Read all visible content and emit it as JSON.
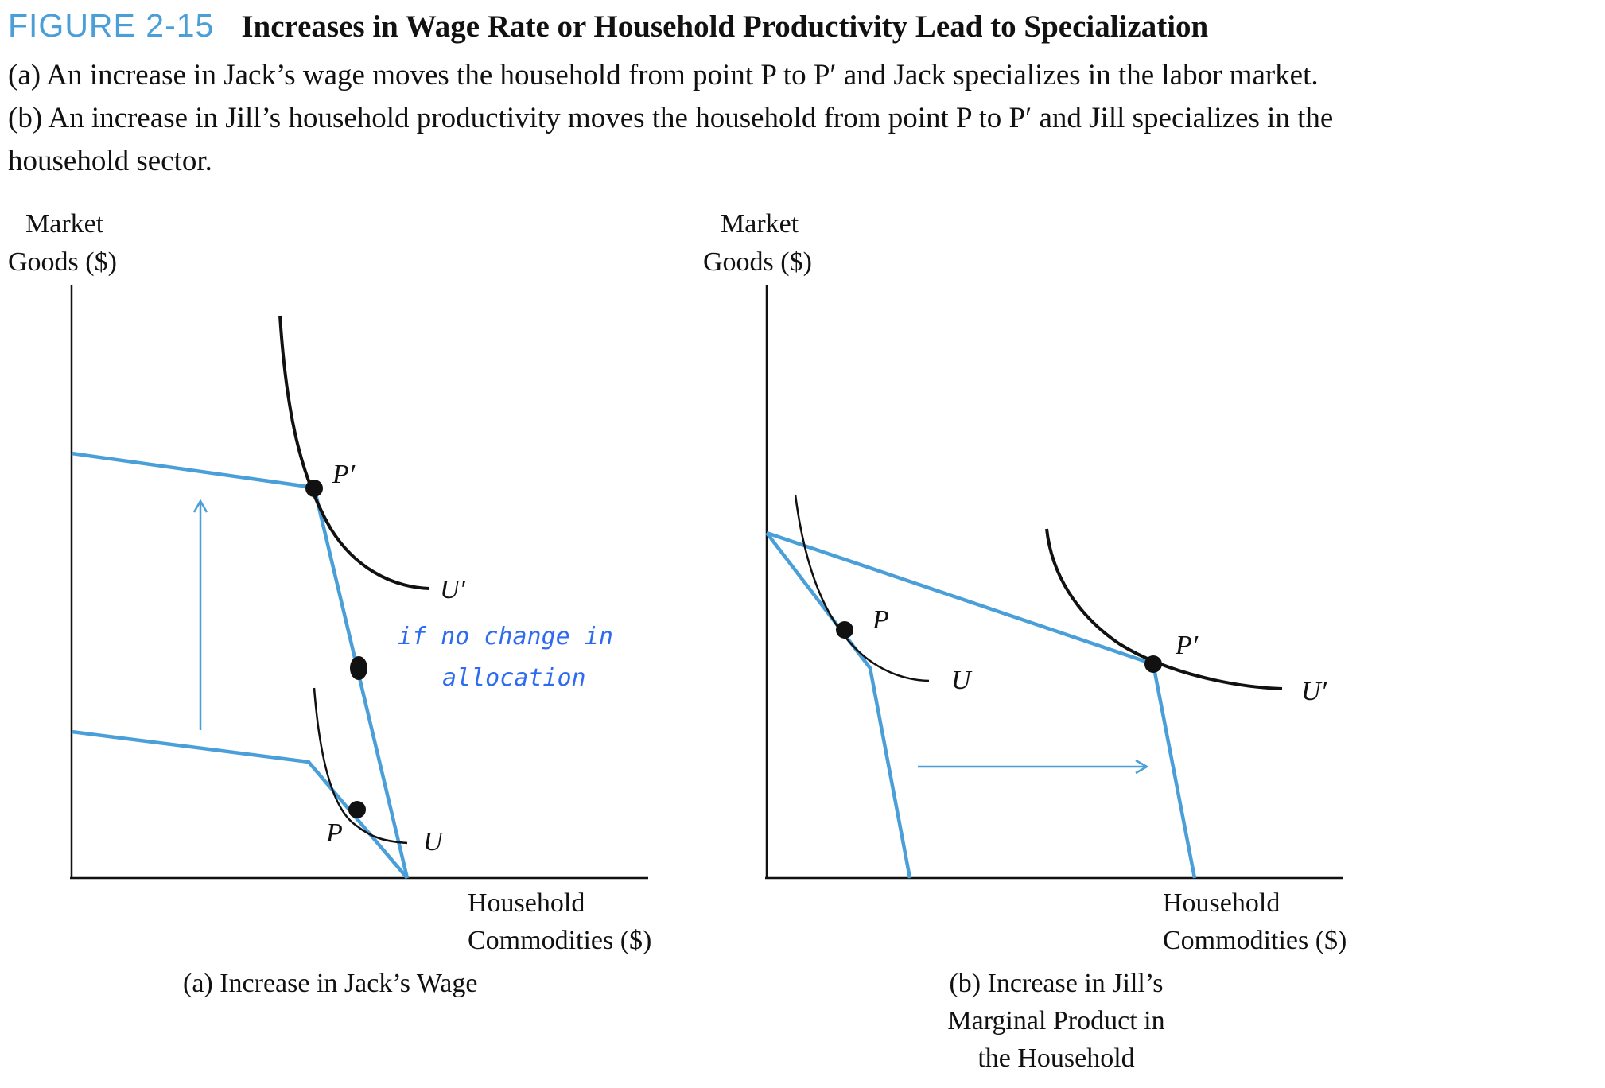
{
  "figure": {
    "number": "FIGURE 2-15",
    "title": "Increases in Wage Rate or Household Productivity Lead to Specialization",
    "caption_lines": [
      "(a) An increase in Jack’s wage moves the household from point P to P′ and Jack specializes in the labor market.",
      "(b) An increase in Jill’s household productivity moves the household from point P to P′ and Jill specializes in the",
      "household sector."
    ]
  },
  "colors": {
    "constraint": "#4a9fd8",
    "curve": "#111111",
    "annotation": "#2f6bf0",
    "figure_number": "#4a9fd8"
  },
  "panels": [
    {
      "id": "a",
      "y_axis_label": [
        "Market",
        "Goods ($)"
      ],
      "x_axis_label": [
        "Household",
        "Commodities ($)"
      ],
      "caption": [
        "(a) Increase in Jack’s Wage"
      ],
      "points": [
        {
          "label": "P"
        },
        {
          "label": "P′"
        }
      ],
      "curves": [
        {
          "label": "U"
        },
        {
          "label": "U′"
        }
      ],
      "arrow_direction": "up",
      "annotation": [
        "if no change in",
        "allocation"
      ]
    },
    {
      "id": "b",
      "y_axis_label": [
        "Market",
        "Goods ($)"
      ],
      "x_axis_label": [
        "Household",
        "Commodities ($)"
      ],
      "caption": [
        "(b) Increase in Jill’s",
        "Marginal Product in",
        "the Household"
      ],
      "points": [
        {
          "label": "P"
        },
        {
          "label": "P′"
        }
      ],
      "curves": [
        {
          "label": "U"
        },
        {
          "label": "U′"
        }
      ],
      "arrow_direction": "right"
    }
  ]
}
